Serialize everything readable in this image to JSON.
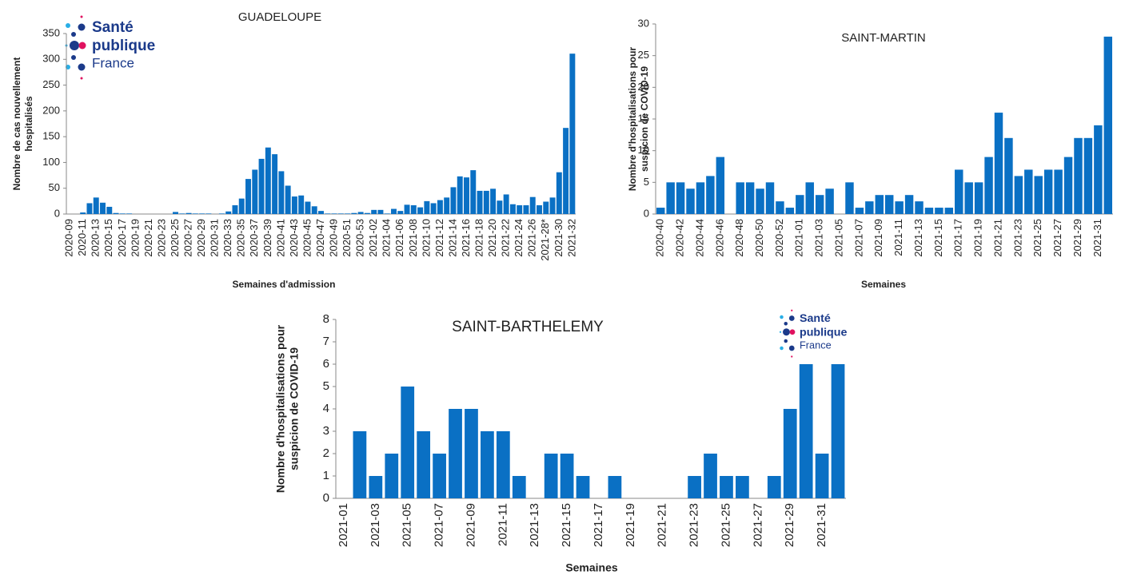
{
  "chart_data": [
    {
      "type": "bar",
      "title": "GUADELOUPE",
      "ylabel": [
        "Nombre de cas nouvellement",
        "hospitalisés"
      ],
      "xlabel": "Semaines d'admission",
      "color": "#0a70c4",
      "categories": [
        "2020-09",
        null,
        "2020-11",
        null,
        "2020-13",
        null,
        "2020-15",
        null,
        "2020-17",
        null,
        "2020-19",
        null,
        "2020-21",
        null,
        "2020-23",
        null,
        "2020-25",
        null,
        "2020-27",
        null,
        "2020-29",
        null,
        "2020-31",
        null,
        "2020-33",
        null,
        "2020-35",
        null,
        "2020-37",
        null,
        "2020-39",
        null,
        "2020-41",
        null,
        "2020-43",
        null,
        "2020-45",
        null,
        "2020-47",
        null,
        "2020-49",
        null,
        "2020-51",
        null,
        "2020-53",
        null,
        "2021-02",
        null,
        "2021-04",
        null,
        "2021-06",
        null,
        "2021-08",
        null,
        "2021-10",
        null,
        "2021-12",
        null,
        "2021-14",
        null,
        "2021-16",
        null,
        "2021-18",
        null,
        "2021-20",
        null,
        "2021-22",
        null,
        "2021-24",
        null,
        "2021-26",
        null,
        "2021-28*",
        null,
        "2021-30",
        null,
        "2021-32"
      ],
      "values": [
        0,
        0,
        3,
        21,
        32,
        22,
        14,
        2,
        1,
        1,
        0,
        0,
        0,
        0,
        0,
        0,
        4,
        1,
        2,
        1,
        1,
        1,
        0,
        1,
        5,
        17,
        30,
        68,
        86,
        107,
        129,
        116,
        83,
        55,
        34,
        36,
        24,
        15,
        6,
        1,
        1,
        1,
        1,
        2,
        4,
        2,
        8,
        8,
        1,
        10,
        6,
        18,
        17,
        13,
        25,
        21,
        27,
        32,
        52,
        73,
        71,
        85,
        45,
        45,
        49,
        26,
        38,
        19,
        17,
        17,
        33,
        17,
        24,
        32,
        81,
        167,
        311
      ],
      "ylim": [
        0,
        350
      ],
      "yticks": [
        0,
        50,
        100,
        150,
        200,
        250,
        300,
        350
      ]
    },
    {
      "type": "bar",
      "title": "SAINT-MARTIN",
      "ylabel": [
        "Nombre d'hospitalisations pour",
        "suspicion de COVID-19"
      ],
      "xlabel": "Semaines",
      "color": "#0a70c4",
      "categories": [
        "2020-40",
        null,
        "2020-42",
        null,
        "2020-44",
        null,
        "2020-46",
        null,
        "2020-48",
        null,
        "2020-50",
        null,
        "2020-52",
        null,
        "2021-01",
        null,
        "2021-03",
        null,
        "2021-05",
        null,
        "2021-07",
        null,
        "2021-09",
        null,
        "2021-11",
        null,
        "2021-13",
        null,
        "2021-15",
        null,
        "2021-17",
        null,
        "2021-19",
        null,
        "2021-21",
        null,
        "2021-23",
        null,
        "2021-25",
        null,
        "2021-27",
        null,
        "2021-29",
        null,
        "2021-31",
        null
      ],
      "values": [
        1,
        5,
        5,
        4,
        5,
        6,
        9,
        0,
        5,
        5,
        4,
        5,
        2,
        1,
        3,
        5,
        3,
        4,
        0,
        5,
        1,
        2,
        3,
        3,
        2,
        3,
        2,
        1,
        1,
        1,
        7,
        5,
        5,
        9,
        16,
        12,
        6,
        7,
        6,
        7,
        7,
        9,
        12,
        12,
        14,
        28
      ],
      "ylim": [
        0,
        30
      ],
      "yticks": [
        0,
        5,
        10,
        15,
        20,
        25,
        30
      ]
    },
    {
      "type": "bar",
      "title": "SAINT-BARTHELEMY",
      "ylabel": [
        "Nombre d'hospitalisations pour",
        "suspicion de COVID-19"
      ],
      "xlabel": "Semaines",
      "color": "#0a70c4",
      "categories": [
        "2021-01",
        null,
        "2021-03",
        null,
        "2021-05",
        null,
        "2021-07",
        null,
        "2021-09",
        null,
        "2021-11",
        null,
        "2021-13",
        null,
        "2021-15",
        null,
        "2021-17",
        null,
        "2021-19",
        null,
        "2021-21",
        null,
        "2021-23",
        null,
        "2021-25",
        null,
        "2021-27",
        null,
        "2021-29",
        null,
        "2021-31",
        null
      ],
      "values": [
        0,
        3,
        1,
        2,
        5,
        3,
        2,
        4,
        4,
        3,
        3,
        1,
        0,
        2,
        2,
        1,
        0,
        1,
        0,
        0,
        0,
        0,
        1,
        2,
        1,
        1,
        0,
        1,
        4,
        6,
        2,
        6
      ],
      "ylim": [
        0,
        8
      ],
      "yticks": [
        0,
        1,
        2,
        3,
        4,
        5,
        6,
        7,
        8
      ]
    }
  ],
  "logos": [
    {
      "lines": [
        "Santé",
        "publique",
        "France"
      ]
    },
    {
      "lines": [
        "Santé",
        "publique",
        "France"
      ]
    }
  ]
}
